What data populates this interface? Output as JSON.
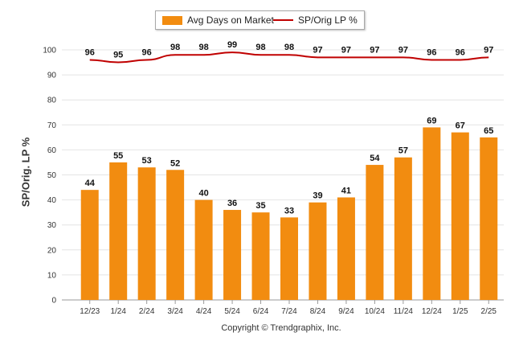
{
  "chart_data": {
    "type": "bar",
    "categories": [
      "12/23",
      "1/24",
      "2/24",
      "3/24",
      "4/24",
      "5/24",
      "6/24",
      "7/24",
      "8/24",
      "9/24",
      "10/24",
      "11/24",
      "12/24",
      "1/25",
      "2/25"
    ],
    "series": [
      {
        "name": "Avg Days on Market",
        "type": "bar",
        "color": "#f28c10",
        "values": [
          44,
          55,
          53,
          52,
          40,
          36,
          35,
          33,
          39,
          41,
          54,
          57,
          69,
          67,
          65
        ]
      },
      {
        "name": "SP/Orig LP %",
        "type": "line",
        "color": "#c00000",
        "values": [
          96,
          95,
          96,
          98,
          98,
          99,
          98,
          98,
          97,
          97,
          97,
          97,
          96,
          96,
          97
        ]
      }
    ],
    "ylabel": "SP/Orig. LP %",
    "xlabel": "",
    "ylim": [
      0,
      100
    ],
    "yticks": [
      0,
      10,
      20,
      30,
      40,
      50,
      60,
      70,
      80,
      90,
      100
    ],
    "grid": true,
    "legend_position": "top-center"
  },
  "footer": {
    "copyright": "Copyright © Trendgraphix, Inc."
  }
}
